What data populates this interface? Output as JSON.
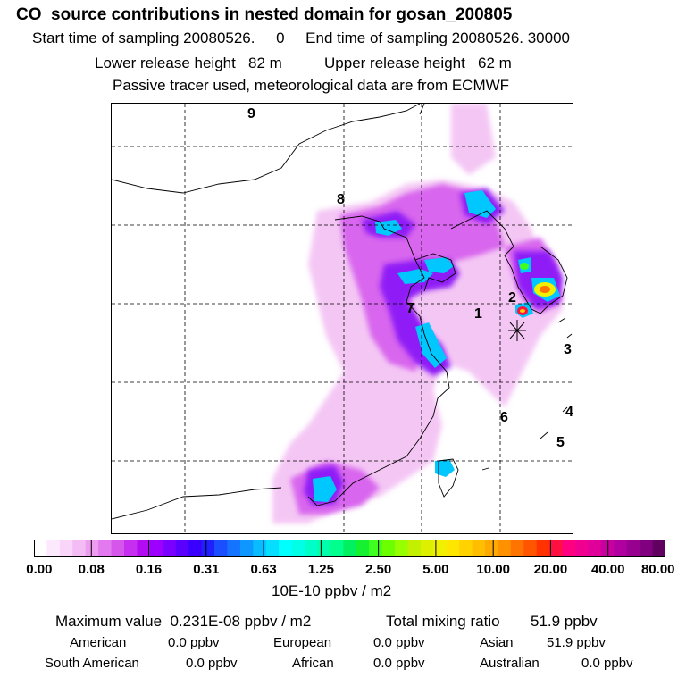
{
  "header": {
    "title": "CO  source contributions in nested domain for gosan_200805",
    "sampling_line": "Start time of sampling 20080526.     0     End time of sampling 20080526. 30000",
    "release_line": "Lower release height   82 m          Upper release height   62 m",
    "tracer_line": "Passive tracer used, meteorological data are from ECMWF"
  },
  "map": {
    "trajectory_labels": [
      "1",
      "2",
      "3",
      "4",
      "5",
      "6",
      "7",
      "8",
      "9"
    ],
    "receptor_marker": "receptor-star"
  },
  "colorbar": {
    "ticks": [
      "0.00",
      "0.08",
      "0.16",
      "0.31",
      "0.63",
      "1.25",
      "2.50",
      "5.00",
      "10.00",
      "20.00",
      "40.00",
      "80.00"
    ],
    "units": "10E-10 ppbv / m2",
    "colors": [
      "#ffffff",
      "#fde9fd",
      "#f9d5f9",
      "#f4bcf4",
      "#ee9cf0",
      "#e379ee",
      "#d656ec",
      "#c72ff0",
      "#b30cf3",
      "#9d00ff",
      "#7a00ff",
      "#5a00ff",
      "#3a00ff",
      "#2020ff",
      "#1a4eff",
      "#1473ff",
      "#0e98ff",
      "#09bbff",
      "#05deff",
      "#00ffff",
      "#00ffe6",
      "#00ffc8",
      "#00ffaa",
      "#00ff8c",
      "#00f060",
      "#15f030",
      "#40ff20",
      "#6cff00",
      "#98ff00",
      "#c3f000",
      "#dcf000",
      "#f0f000",
      "#ffe600",
      "#ffd200",
      "#ffbe00",
      "#ffaa00",
      "#ff9100",
      "#ff7300",
      "#ff5500",
      "#ff3200",
      "#ff1040",
      "#ff0080",
      "#f00090",
      "#e0009a",
      "#c800a0",
      "#b000a0",
      "#980090",
      "#800080",
      "#600060"
    ]
  },
  "stats": {
    "max_label": "Maximum value  0.231E-08 ppbv / m2",
    "total_label": "Total mixing ratio",
    "total_value": "51.9 ppbv",
    "regions": [
      {
        "name": "American",
        "value": "0.0 ppbv"
      },
      {
        "name": "European",
        "value": "0.0 ppbv"
      },
      {
        "name": "Asian",
        "value": "51.9 ppbv"
      },
      {
        "name": "South American",
        "value": "0.0 ppbv"
      },
      {
        "name": "African",
        "value": "0.0 ppbv"
      },
      {
        "name": "Australian",
        "value": "0.0 ppbv"
      }
    ]
  }
}
